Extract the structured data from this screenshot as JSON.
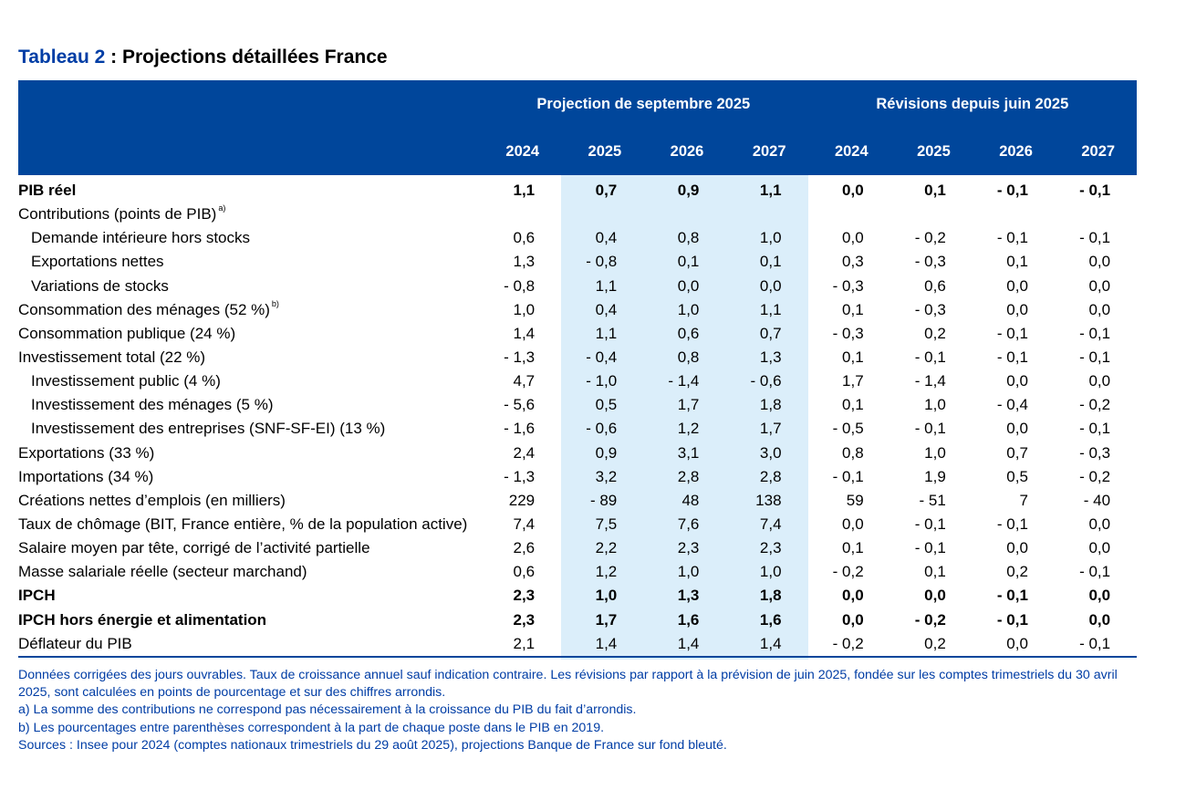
{
  "title": {
    "prefix": "Tableau 2",
    "rest": " : Projections détaillées France"
  },
  "header": {
    "group1": "Projection de septembre 2025",
    "group2": "Révisions depuis juin 2025",
    "years": [
      "2024",
      "2025",
      "2026",
      "2027",
      "2024",
      "2025",
      "2026",
      "2027"
    ]
  },
  "colors": {
    "header_bg": "#00469b",
    "shade": "#dbeefa",
    "title_accent": "#003da5"
  },
  "rows": [
    {
      "label": "PIB réel",
      "sup": "",
      "indent": false,
      "bold": true,
      "values": [
        "1,1",
        "0,7",
        "0,9",
        "1,1",
        "0,0",
        "0,1",
        "- 0,1",
        "- 0,1"
      ]
    },
    {
      "label": "Contributions (points de PIB)",
      "sup": "a)",
      "indent": false,
      "bold": false,
      "values": [
        "",
        "",
        "",
        "",
        "",
        "",
        "",
        ""
      ]
    },
    {
      "label": "Demande intérieure hors stocks",
      "sup": "",
      "indent": true,
      "bold": false,
      "values": [
        "0,6",
        "0,4",
        "0,8",
        "1,0",
        "0,0",
        "- 0,2",
        "- 0,1",
        "- 0,1"
      ]
    },
    {
      "label": "Exportations nettes",
      "sup": "",
      "indent": true,
      "bold": false,
      "values": [
        "1,3",
        "- 0,8",
        "0,1",
        "0,1",
        "0,3",
        "- 0,3",
        "0,1",
        "0,0"
      ]
    },
    {
      "label": "Variations de stocks",
      "sup": "",
      "indent": true,
      "bold": false,
      "values": [
        "- 0,8",
        "1,1",
        "0,0",
        "0,0",
        "- 0,3",
        "0,6",
        "0,0",
        "0,0"
      ]
    },
    {
      "label": "Consommation des ménages (52 %)",
      "sup": "b)",
      "indent": false,
      "bold": false,
      "values": [
        "1,0",
        "0,4",
        "1,0",
        "1,1",
        "0,1",
        "- 0,3",
        "0,0",
        "0,0"
      ]
    },
    {
      "label": "Consommation publique (24 %)",
      "sup": "",
      "indent": false,
      "bold": false,
      "values": [
        "1,4",
        "1,1",
        "0,6",
        "0,7",
        "- 0,3",
        "0,2",
        "- 0,1",
        "- 0,1"
      ]
    },
    {
      "label": "Investissement total (22 %)",
      "sup": "",
      "indent": false,
      "bold": false,
      "values": [
        "- 1,3",
        "- 0,4",
        "0,8",
        "1,3",
        "0,1",
        "- 0,1",
        "- 0,1",
        "- 0,1"
      ]
    },
    {
      "label": "Investissement public (4 %)",
      "sup": "",
      "indent": true,
      "bold": false,
      "values": [
        "4,7",
        "- 1,0",
        "- 1,4",
        "- 0,6",
        "1,7",
        "- 1,4",
        "0,0",
        "0,0"
      ]
    },
    {
      "label": "Investissement des ménages (5 %)",
      "sup": "",
      "indent": true,
      "bold": false,
      "values": [
        "- 5,6",
        "0,5",
        "1,7",
        "1,8",
        "0,1",
        "1,0",
        "- 0,4",
        "- 0,2"
      ]
    },
    {
      "label": "Investissement des entreprises (SNF-SF-EI) (13 %)",
      "sup": "",
      "indent": true,
      "bold": false,
      "values": [
        "- 1,6",
        "- 0,6",
        "1,2",
        "1,7",
        "- 0,5",
        "- 0,1",
        "0,0",
        "- 0,1"
      ]
    },
    {
      "label": "Exportations (33 %)",
      "sup": "",
      "indent": false,
      "bold": false,
      "values": [
        "2,4",
        "0,9",
        "3,1",
        "3,0",
        "0,8",
        "1,0",
        "0,7",
        "- 0,3"
      ]
    },
    {
      "label": "Importations (34 %)",
      "sup": "",
      "indent": false,
      "bold": false,
      "values": [
        "- 1,3",
        "3,2",
        "2,8",
        "2,8",
        "- 0,1",
        "1,9",
        "0,5",
        "- 0,2"
      ]
    },
    {
      "label": "Créations nettes d’emplois (en milliers)",
      "sup": "",
      "indent": false,
      "bold": false,
      "values": [
        "229",
        "- 89",
        "48",
        "138",
        "59",
        "- 51",
        "7",
        "- 40"
      ]
    },
    {
      "label": "Taux de chômage (BIT, France entière, % de la population active)",
      "sup": "",
      "indent": false,
      "bold": false,
      "values": [
        "7,4",
        "7,5",
        "7,6",
        "7,4",
        "0,0",
        "- 0,1",
        "- 0,1",
        "0,0"
      ]
    },
    {
      "label": "Salaire moyen par tête, corrigé de l’activité partielle",
      "sup": "",
      "indent": false,
      "bold": false,
      "values": [
        "2,6",
        "2,2",
        "2,3",
        "2,3",
        "0,1",
        "- 0,1",
        "0,0",
        "0,0"
      ]
    },
    {
      "label": "Masse salariale réelle (secteur marchand)",
      "sup": "",
      "indent": false,
      "bold": false,
      "values": [
        "0,6",
        "1,2",
        "1,0",
        "1,0",
        "- 0,2",
        "0,1",
        "0,2",
        "- 0,1"
      ]
    },
    {
      "label": "IPCH",
      "sup": "",
      "indent": false,
      "bold": true,
      "values": [
        "2,3",
        "1,0",
        "1,3",
        "1,8",
        "0,0",
        "0,0",
        "- 0,1",
        "0,0"
      ]
    },
    {
      "label": "IPCH hors énergie et alimentation",
      "sup": "",
      "indent": false,
      "bold": true,
      "values": [
        "2,3",
        "1,7",
        "1,6",
        "1,6",
        "0,0",
        "- 0,2",
        "- 0,1",
        "0,0"
      ]
    },
    {
      "label": "Déflateur du PIB",
      "sup": "",
      "indent": false,
      "bold": false,
      "values": [
        "2,1",
        "1,4",
        "1,4",
        "1,4",
        "- 0,2",
        "0,2",
        "0,0",
        "- 0,1"
      ]
    }
  ],
  "notes": [
    "Données corrigées des jours ouvrables. Taux de croissance annuel sauf indication contraire. Les révisions par rapport à la prévision de juin 2025, fondée sur les comptes trimestriels du 30 avril 2025, sont calculées en points de pourcentage et sur des chiffres arrondis.",
    "a)  La somme des contributions ne correspond pas nécessairement à la croissance du PIB du fait d’arrondis.",
    "b)  Les pourcentages entre parenthèses correspondent à la part de chaque poste dans le PIB en 2019.",
    "Sources : Insee pour 2024 (comptes nationaux trimestriels du 29 août 2025), projections Banque de France sur fond bleuté."
  ]
}
